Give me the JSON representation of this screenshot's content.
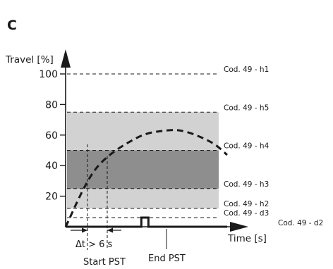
{
  "figure": {
    "panel_label": "C"
  },
  "chart_data": {
    "type": "line",
    "xlabel": "Time [s]",
    "ylabel": "Travel [%]",
    "ylim": [
      0,
      108
    ],
    "yticks": [
      20,
      40,
      60,
      80,
      100
    ],
    "grid": false,
    "bands": [
      {
        "from": 12,
        "to": 75,
        "color": "#d2d2d2"
      },
      {
        "from": 25,
        "to": 50,
        "color": "#8e8e8e"
      }
    ],
    "levels": [
      {
        "label": "Cod. 49 - h1",
        "value": 100
      },
      {
        "label": "Cod. 49 - h5",
        "value": 75
      },
      {
        "label": "Cod. 49 - h4",
        "value": 50
      },
      {
        "label": "Cod. 49 - h3",
        "value": 25
      },
      {
        "label": "Cod. 49 - h2",
        "value": 12
      },
      {
        "label": "Cod. 49 - d3",
        "value": 6
      },
      {
        "label": "Cod. 49 - d2",
        "value": 0
      }
    ],
    "series": [
      {
        "style": "dashed",
        "points": [
          [
            0,
            0
          ],
          [
            30,
            38
          ],
          [
            70,
            58
          ],
          [
            100,
            63
          ],
          [
            120,
            62
          ],
          [
            145,
            55
          ],
          [
            160,
            47
          ]
        ]
      },
      {
        "style": "solid",
        "points": [
          [
            0,
            0
          ],
          [
            75,
            0
          ],
          [
            75,
            6
          ],
          [
            82,
            6
          ],
          [
            82,
            0
          ],
          [
            160,
            0
          ]
        ]
      }
    ],
    "annotations": {
      "delta": "Δt > 6 s",
      "start": "Start PST",
      "end": "End PST"
    },
    "colors": {
      "band_outer": "#d2d2d2",
      "band_inner": "#8e8e8e",
      "ink": "#1a1a1a"
    }
  }
}
